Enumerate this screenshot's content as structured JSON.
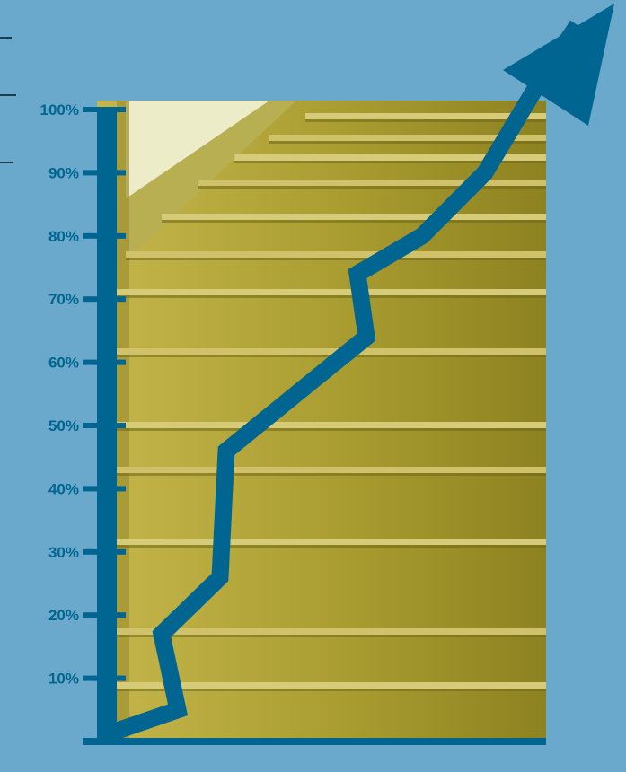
{
  "colors": {
    "background": "#6BA9CC",
    "axis": "#006691",
    "photo": "#B1A436"
  },
  "chart_data": {
    "type": "line",
    "title": "",
    "xlabel": "",
    "ylabel": "",
    "ylim": [
      0,
      100
    ],
    "y_ticks": [
      10,
      20,
      30,
      40,
      50,
      60,
      70,
      80,
      90,
      100
    ],
    "y_tick_labels": [
      "10%",
      "20%",
      "30%",
      "40%",
      "50%",
      "60%",
      "70%",
      "80%",
      "90%",
      "100%"
    ],
    "grid": false,
    "legend": "none",
    "arrow_end": true,
    "series": [
      {
        "x": [
          0,
          10,
          20,
          30,
          40,
          50,
          60,
          70,
          80,
          90,
          100,
          110
        ],
        "values": [
          1,
          5,
          17,
          26,
          46,
          55,
          64,
          74,
          80,
          90,
          100,
          110
        ]
      }
    ]
  }
}
